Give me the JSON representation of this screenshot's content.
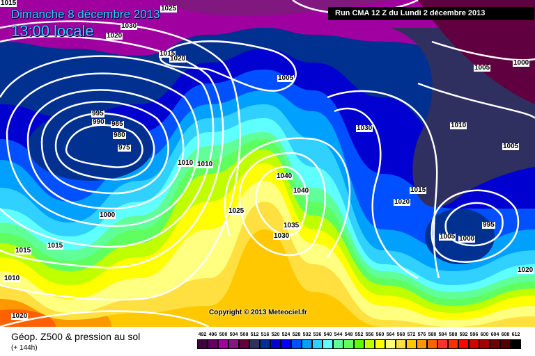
{
  "header": {
    "date": "Dimanche 8 décembre 2013",
    "time": "13:00 locale",
    "run": "Run CMA 12 Z du Lundi 2 décembre 2013"
  },
  "map": {
    "pressure_labels": [
      "1015",
      "1025",
      "1020",
      "1030",
      "1015",
      "1020",
      "1005",
      "995",
      "990",
      "985",
      "980",
      "975",
      "1010",
      "1010",
      "1040",
      "1040",
      "1030",
      "1010",
      "1005",
      "1005",
      "1000",
      "1015",
      "1020",
      "1025",
      "1000",
      "1035",
      "1030",
      "995",
      "1005",
      "1000",
      "1015",
      "1015",
      "1010",
      "1020",
      "1020"
    ],
    "copyright": "Copyright © 2013 Meteociel.fr",
    "contour_color": "#ffffff"
  },
  "footer": {
    "title": "Géop. Z500 & pression au sol",
    "subtitle": "(+ 144h)"
  },
  "legend": {
    "labels": [
      "492",
      "496",
      "500",
      "504",
      "508",
      "512",
      "516",
      "520",
      "524",
      "528",
      "532",
      "536",
      "540",
      "544",
      "548",
      "552",
      "556",
      "560",
      "564",
      "568",
      "572",
      "576",
      "580",
      "584",
      "588",
      "592",
      "596",
      "600",
      "604",
      "608",
      "612"
    ],
    "colors": [
      "#400040",
      "#600060",
      "#a000a0",
      "#801880",
      "#600040",
      "#303060",
      "#003090",
      "#0000d0",
      "#0000ff",
      "#0050ff",
      "#00a0ff",
      "#30d0ff",
      "#60ffff",
      "#60ff98",
      "#60ff60",
      "#60ff00",
      "#c0ff00",
      "#ffff00",
      "#ffff80",
      "#ffe040",
      "#ffc800",
      "#ff9800",
      "#ff6000",
      "#ff3030",
      "#ff3000",
      "#ff0000",
      "#d00000",
      "#a00000",
      "#700000",
      "#500000",
      "#000000"
    ]
  }
}
